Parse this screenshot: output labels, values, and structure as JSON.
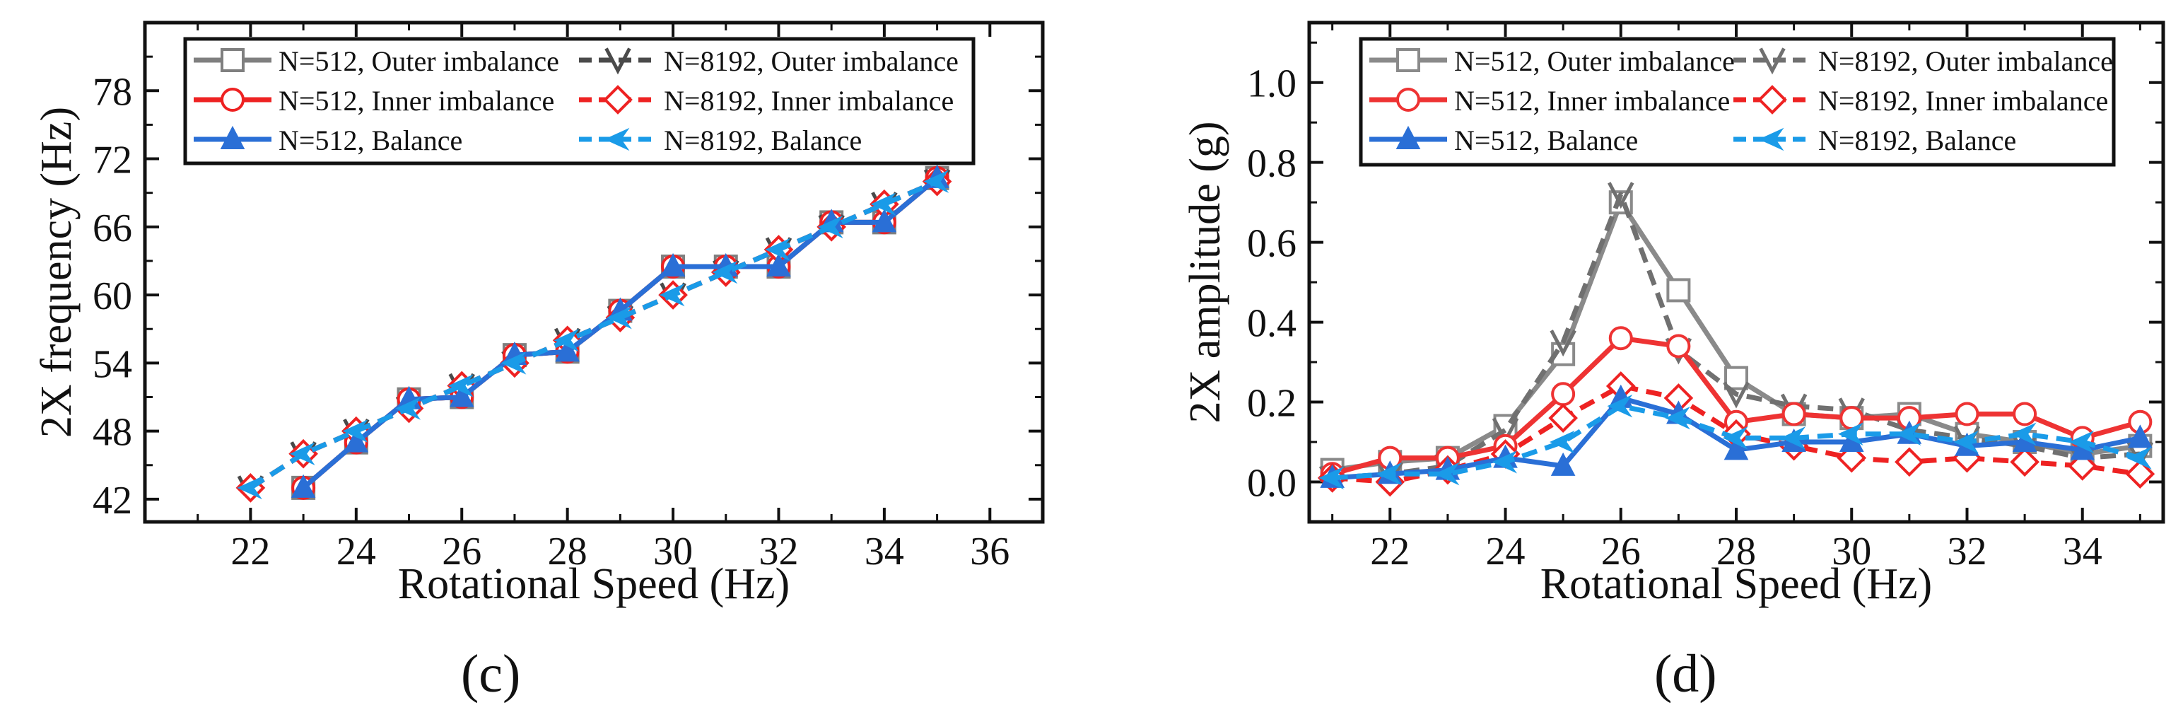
{
  "figure": {
    "panel_labels": [
      "(c)",
      "(d)"
    ]
  },
  "chart_data": [
    {
      "id": "c",
      "type": "line",
      "title": "",
      "xlabel": "Rotational Speed (Hz)",
      "ylabel": "2X frequency (Hz)",
      "xlim": [
        20,
        37
      ],
      "ylim": [
        40,
        84
      ],
      "xticks": [
        22,
        24,
        26,
        28,
        30,
        32,
        34,
        36
      ],
      "yticks": [
        42,
        48,
        54,
        60,
        66,
        72,
        78
      ],
      "legend": [
        {
          "label": "N=512, Outer imbalance",
          "series": 0
        },
        {
          "label": "N=8192, Outer imbalance",
          "series": 1
        },
        {
          "label": "N=512, Inner imbalance",
          "series": 2
        },
        {
          "label": "N=8192, Inner imbalance",
          "series": 3
        },
        {
          "label": "N=512, Balance",
          "series": 4
        },
        {
          "label": "N=8192, Balance",
          "series": 5
        }
      ],
      "series": [
        {
          "name": "N=512, Outer imbalance",
          "color": "#7f7f7f",
          "dash": "solid",
          "marker": "square-open",
          "x": [
            23,
            24,
            25,
            26,
            27,
            28,
            29,
            30,
            31,
            32,
            33,
            34,
            35
          ],
          "y": [
            43,
            47,
            50.8,
            51,
            54.7,
            55,
            58.6,
            62.5,
            62.5,
            62.5,
            66.4,
            66.4,
            70.3
          ]
        },
        {
          "name": "N=8192, Outer imbalance",
          "color": "#4a4a4a",
          "dash": "dashed",
          "marker": "v-open",
          "x": [
            22,
            23,
            24,
            25,
            26,
            27,
            28,
            29,
            30,
            31,
            32,
            33,
            34,
            35
          ],
          "y": [
            43,
            46,
            48,
            50,
            52,
            54,
            56,
            58,
            60,
            62,
            64,
            66,
            68,
            70
          ]
        },
        {
          "name": "N=512, Inner imbalance",
          "color": "#ee2222",
          "dash": "solid",
          "marker": "circle-open",
          "x": [
            23,
            24,
            25,
            26,
            27,
            28,
            29,
            30,
            31,
            32,
            33,
            34,
            35
          ],
          "y": [
            43,
            47,
            50.8,
            51,
            54.7,
            55,
            58.6,
            62.5,
            62.5,
            62.5,
            66.4,
            66.4,
            70.3
          ]
        },
        {
          "name": "N=8192, Inner imbalance",
          "color": "#ee2222",
          "dash": "dashed",
          "marker": "diamond-open",
          "x": [
            22,
            23,
            24,
            25,
            26,
            27,
            28,
            29,
            30,
            31,
            32,
            33,
            34,
            35
          ],
          "y": [
            43,
            46,
            48,
            50,
            52,
            54,
            56,
            58,
            60,
            62,
            64,
            66,
            68,
            70
          ]
        },
        {
          "name": "N=512, Balance",
          "color": "#2a6fd6",
          "dash": "solid",
          "marker": "triangle-filled",
          "x": [
            23,
            24,
            25,
            26,
            27,
            28,
            29,
            30,
            31,
            32,
            33,
            34,
            35
          ],
          "y": [
            43,
            47,
            50.8,
            51,
            54.7,
            55,
            58.6,
            62.5,
            62.5,
            62.5,
            66.4,
            66.4,
            70.3
          ]
        },
        {
          "name": "N=8192, Balance",
          "color": "#1a9be8",
          "dash": "dashed",
          "marker": "arrow-left-filled",
          "x": [
            22,
            23,
            24,
            25,
            26,
            27,
            28,
            29,
            30,
            31,
            32,
            33,
            34,
            35
          ],
          "y": [
            43,
            46,
            48,
            50,
            52,
            54,
            56,
            58,
            60,
            62,
            64,
            66,
            68,
            70
          ]
        }
      ]
    },
    {
      "id": "d",
      "type": "line",
      "title": "",
      "xlabel": "Rotational Speed (Hz)",
      "ylabel": "2X amplitude (g)",
      "xlim": [
        20.6,
        35.4
      ],
      "ylim": [
        -0.1,
        1.15
      ],
      "xticks": [
        22,
        24,
        26,
        28,
        30,
        32,
        34
      ],
      "yticks": [
        0.0,
        0.2,
        0.4,
        0.6,
        0.8,
        1.0
      ],
      "ytick_labels": [
        "0.0",
        "0.2",
        "0.4",
        "0.6",
        "0.8",
        "1.0"
      ],
      "legend": [
        {
          "label": "N=512, Outer imbalance",
          "series": 0
        },
        {
          "label": "N=8192, Outer imbalance",
          "series": 1
        },
        {
          "label": "N=512, Inner imbalance",
          "series": 2
        },
        {
          "label": "N=8192, Inner imbalance",
          "series": 3
        },
        {
          "label": "N=512, Balance",
          "series": 4
        },
        {
          "label": "N=8192, Balance",
          "series": 5
        }
      ],
      "series": [
        {
          "name": "N=512, Outer imbalance",
          "color": "#8a8a8a",
          "dash": "solid",
          "marker": "square-open",
          "x": [
            21,
            22,
            23,
            24,
            25,
            26,
            27,
            28,
            29,
            30,
            31,
            32,
            33,
            34,
            35
          ],
          "y": [
            0.03,
            0.05,
            0.06,
            0.14,
            0.32,
            0.7,
            0.48,
            0.26,
            0.17,
            0.16,
            0.17,
            0.12,
            0.1,
            0.07,
            0.09
          ]
        },
        {
          "name": "N=8192, Outer imbalance",
          "color": "#707070",
          "dash": "dashed",
          "marker": "v-open",
          "x": [
            21,
            22,
            23,
            24,
            25,
            26,
            27,
            28,
            29,
            30,
            31,
            32,
            33,
            34,
            35
          ],
          "y": [
            0.01,
            0.02,
            0.04,
            0.13,
            0.35,
            0.72,
            0.33,
            0.22,
            0.19,
            0.18,
            0.13,
            0.11,
            0.09,
            0.06,
            0.07
          ]
        },
        {
          "name": "N=512, Inner imbalance",
          "color": "#ee3333",
          "dash": "solid",
          "marker": "circle-open",
          "x": [
            21,
            22,
            23,
            24,
            25,
            26,
            27,
            28,
            29,
            30,
            31,
            32,
            33,
            34,
            35
          ],
          "y": [
            0.02,
            0.06,
            0.06,
            0.09,
            0.22,
            0.36,
            0.34,
            0.15,
            0.17,
            0.16,
            0.16,
            0.17,
            0.17,
            0.11,
            0.15
          ]
        },
        {
          "name": "N=8192, Inner imbalance",
          "color": "#ee2222",
          "dash": "dashed",
          "marker": "diamond-open",
          "x": [
            21,
            22,
            23,
            24,
            25,
            26,
            27,
            28,
            29,
            30,
            31,
            32,
            33,
            34,
            35
          ],
          "y": [
            0.01,
            0.0,
            0.03,
            0.07,
            0.16,
            0.24,
            0.21,
            0.12,
            0.09,
            0.06,
            0.05,
            0.06,
            0.05,
            0.04,
            0.02
          ]
        },
        {
          "name": "N=512, Balance",
          "color": "#2a6fd6",
          "dash": "solid",
          "marker": "triangle-filled",
          "x": [
            21,
            22,
            23,
            24,
            25,
            26,
            27,
            28,
            29,
            30,
            31,
            32,
            33,
            34,
            35
          ],
          "y": [
            0.01,
            0.02,
            0.03,
            0.06,
            0.04,
            0.21,
            0.17,
            0.08,
            0.1,
            0.1,
            0.12,
            0.09,
            0.1,
            0.08,
            0.11
          ]
        },
        {
          "name": "N=8192, Balance",
          "color": "#1a9be8",
          "dash": "dashed",
          "marker": "arrow-left-filled",
          "x": [
            21,
            22,
            23,
            24,
            25,
            26,
            27,
            28,
            29,
            30,
            31,
            32,
            33,
            34,
            35
          ],
          "y": [
            0.01,
            0.02,
            0.02,
            0.05,
            0.1,
            0.19,
            0.16,
            0.11,
            0.11,
            0.12,
            0.12,
            0.1,
            0.12,
            0.1,
            0.06
          ]
        }
      ]
    }
  ]
}
